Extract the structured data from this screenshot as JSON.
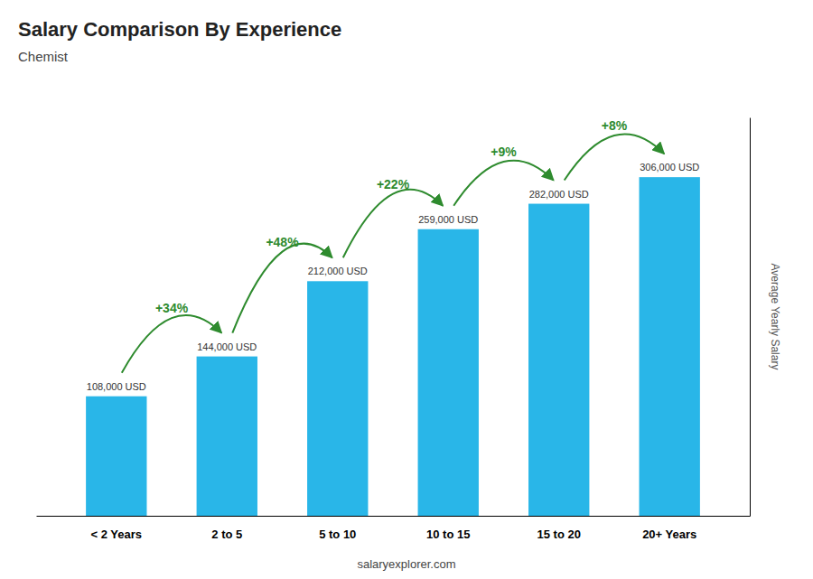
{
  "chart_data": {
    "type": "bar",
    "title": "Salary Comparison By Experience",
    "subtitle": "Chemist",
    "categories": [
      "< 2 Years",
      "2 to 5",
      "5 to 10",
      "10 to 15",
      "15 to 20",
      "20+ Years"
    ],
    "values": [
      108000,
      144000,
      212000,
      259000,
      282000,
      306000
    ],
    "value_labels": [
      "108,000 USD",
      "144,000 USD",
      "212,000 USD",
      "259,000 USD",
      "282,000 USD",
      "306,000 USD"
    ],
    "data_labels": true,
    "color": "#29b6e8",
    "ylabel": "Average Yearly Salary",
    "ylim": [
      0,
      360000
    ],
    "annotations": [
      "+34%",
      "+48%",
      "+22%",
      "+9%",
      "+8%"
    ],
    "footer": "salaryexplorer.com",
    "tick_labels": "x",
    "grid": false
  }
}
